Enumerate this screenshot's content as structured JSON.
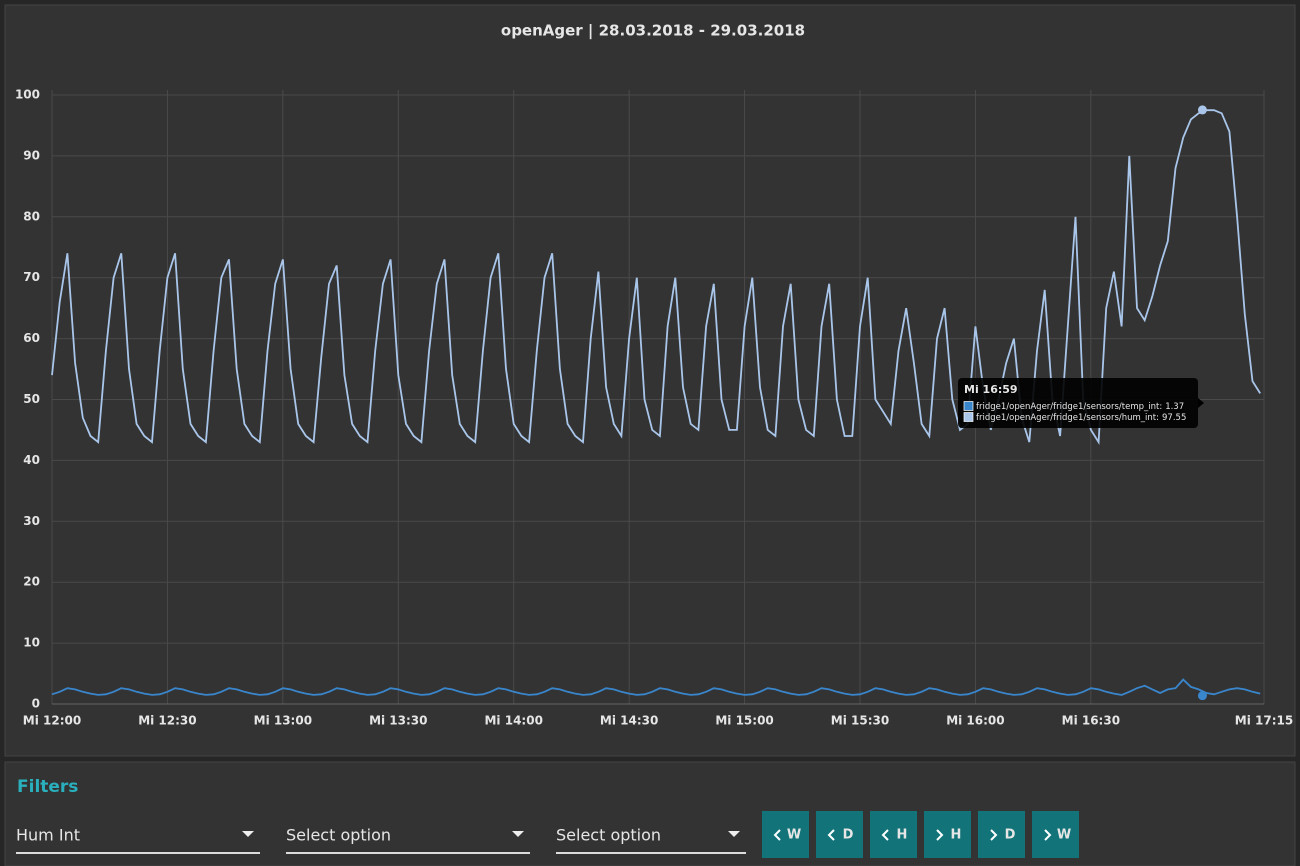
{
  "chart_data": {
    "type": "line",
    "title": "openAger | 28.03.2018 - 29.03.2018",
    "x": [
      720,
      722,
      724,
      726,
      728,
      730,
      732,
      734,
      736,
      738,
      740,
      742,
      744,
      746,
      748,
      750,
      752,
      754,
      756,
      758,
      760,
      762,
      764,
      766,
      768,
      770,
      772,
      774,
      776,
      778,
      780,
      782,
      784,
      786,
      788,
      790,
      792,
      794,
      796,
      798,
      800,
      802,
      804,
      806,
      808,
      810,
      812,
      814,
      816,
      818,
      820,
      822,
      824,
      826,
      828,
      830,
      832,
      834,
      836,
      838,
      840,
      842,
      844,
      846,
      848,
      850,
      852,
      854,
      856,
      858,
      860,
      862,
      864,
      866,
      868,
      870,
      872,
      874,
      876,
      878,
      880,
      882,
      884,
      886,
      888,
      890,
      892,
      894,
      896,
      898,
      900,
      902,
      904,
      906,
      908,
      910,
      912,
      914,
      916,
      918,
      920,
      922,
      924,
      926,
      928,
      930,
      932,
      934,
      936,
      938,
      940,
      942,
      944,
      946,
      948,
      950,
      952,
      954,
      956,
      958,
      960,
      962,
      964,
      966,
      968,
      970,
      972,
      974,
      976,
      978,
      980,
      982,
      984,
      986,
      988,
      990,
      992,
      994,
      996,
      998,
      1000,
      1002,
      1004,
      1006,
      1008,
      1010,
      1012,
      1014,
      1016,
      1018,
      1020,
      1022,
      1024,
      1026,
      1028,
      1030,
      1032,
      1034
    ],
    "series": [
      {
        "name": "fridge1/openAger/fridge1/sensors/hum_int",
        "color": "#a9c6ea",
        "values": [
          54,
          66,
          74,
          56,
          47,
          44,
          43,
          58,
          70,
          74,
          55,
          46,
          44,
          43,
          58,
          70,
          74,
          55,
          46,
          44,
          43,
          58,
          70,
          73,
          55,
          46,
          44,
          43,
          58,
          69,
          73,
          55,
          46,
          44,
          43,
          57,
          69,
          72,
          54,
          46,
          44,
          43,
          58,
          69,
          73,
          54,
          46,
          44,
          43,
          58,
          69,
          73,
          54,
          46,
          44,
          43,
          58,
          70,
          74,
          55,
          46,
          44,
          43,
          58,
          70,
          74,
          55,
          46,
          44,
          43,
          60,
          71,
          52,
          46,
          44,
          60,
          70,
          50,
          45,
          44,
          62,
          70,
          52,
          46,
          45,
          62,
          69,
          50,
          45,
          45,
          62,
          70,
          52,
          45,
          44,
          62,
          69,
          50,
          45,
          44,
          62,
          69,
          50,
          44,
          44,
          62,
          70,
          50,
          48,
          46,
          58,
          65,
          56,
          46,
          44,
          60,
          65,
          50,
          45,
          46,
          62,
          52,
          45,
          50,
          56,
          60,
          47,
          43,
          58,
          68,
          50,
          44,
          62,
          80,
          50,
          45,
          43,
          65,
          71,
          62,
          90,
          65,
          63,
          67,
          72,
          76,
          88,
          93,
          96,
          97,
          97.5,
          97.5,
          97,
          94,
          80,
          64,
          53,
          51
        ]
      },
      {
        "name": "fridge1/openAger/fridge1/sensors/temp_int",
        "color": "#3a86cc",
        "values": [
          1.6,
          2.0,
          2.6,
          2.4,
          2.0,
          1.7,
          1.5,
          1.6,
          2.0,
          2.6,
          2.4,
          2.0,
          1.7,
          1.5,
          1.6,
          2.0,
          2.6,
          2.4,
          2.0,
          1.7,
          1.5,
          1.6,
          2.0,
          2.6,
          2.4,
          2.0,
          1.7,
          1.5,
          1.6,
          2.0,
          2.6,
          2.4,
          2.0,
          1.7,
          1.5,
          1.6,
          2.0,
          2.6,
          2.4,
          2.0,
          1.7,
          1.5,
          1.6,
          2.0,
          2.6,
          2.4,
          2.0,
          1.7,
          1.5,
          1.6,
          2.0,
          2.6,
          2.4,
          2.0,
          1.7,
          1.5,
          1.6,
          2.0,
          2.6,
          2.4,
          2.0,
          1.7,
          1.5,
          1.6,
          2.0,
          2.6,
          2.4,
          2.0,
          1.7,
          1.5,
          1.6,
          2.0,
          2.6,
          2.4,
          2.0,
          1.7,
          1.5,
          1.6,
          2.0,
          2.6,
          2.4,
          2.0,
          1.7,
          1.5,
          1.6,
          2.0,
          2.6,
          2.4,
          2.0,
          1.7,
          1.5,
          1.6,
          2.0,
          2.6,
          2.4,
          2.0,
          1.7,
          1.5,
          1.6,
          2.0,
          2.6,
          2.4,
          2.0,
          1.7,
          1.5,
          1.6,
          2.0,
          2.6,
          2.4,
          2.0,
          1.7,
          1.5,
          1.6,
          2.0,
          2.6,
          2.4,
          2.0,
          1.7,
          1.5,
          1.6,
          2.0,
          2.6,
          2.4,
          2.0,
          1.7,
          1.5,
          1.6,
          2.0,
          2.6,
          2.4,
          2.0,
          1.7,
          1.5,
          1.6,
          2.0,
          2.6,
          2.4,
          2.0,
          1.7,
          1.5,
          2.0,
          2.6,
          3.0,
          2.4,
          1.8,
          2.4,
          2.6,
          4.0,
          2.8,
          2.4,
          1.8,
          1.6,
          2.0,
          2.4,
          2.6,
          2.4,
          2.0,
          1.7
        ]
      }
    ],
    "xlim": [
      720,
      1035
    ],
    "ylim": [
      0,
      100
    ],
    "xticks": [
      {
        "value": 720,
        "label": "Mi 12:00"
      },
      {
        "value": 750,
        "label": "Mi 12:30"
      },
      {
        "value": 780,
        "label": "Mi 13:00"
      },
      {
        "value": 810,
        "label": "Mi 13:30"
      },
      {
        "value": 840,
        "label": "Mi 14:00"
      },
      {
        "value": 870,
        "label": "Mi 14:30"
      },
      {
        "value": 900,
        "label": "Mi 15:00"
      },
      {
        "value": 930,
        "label": "Mi 15:30"
      },
      {
        "value": 960,
        "label": "Mi 16:00"
      },
      {
        "value": 990,
        "label": "Mi 16:30"
      },
      {
        "value": 1035,
        "label": "Mi 17:15"
      }
    ],
    "yticks": [
      0,
      10,
      20,
      30,
      40,
      50,
      60,
      70,
      80,
      90,
      100
    ],
    "grid": true,
    "tooltip": {
      "x": {
        "value": 1019,
        "label": "Mi 16:59"
      },
      "items": [
        {
          "label": "fridge1/openAger/fridge1/sensors/temp_int:",
          "value": 1.37,
          "color": "#3a86cc"
        },
        {
          "label": "fridge1/openAger/fridge1/sensors/hum_int:",
          "value": 97.55,
          "color": "#a9c6ea"
        }
      ]
    }
  },
  "filters": {
    "title": "Filters",
    "selects": [
      "Hum Int",
      "Select option",
      "Select option"
    ],
    "buttons": [
      "W",
      "D",
      "H",
      "H",
      "D",
      "W"
    ]
  }
}
